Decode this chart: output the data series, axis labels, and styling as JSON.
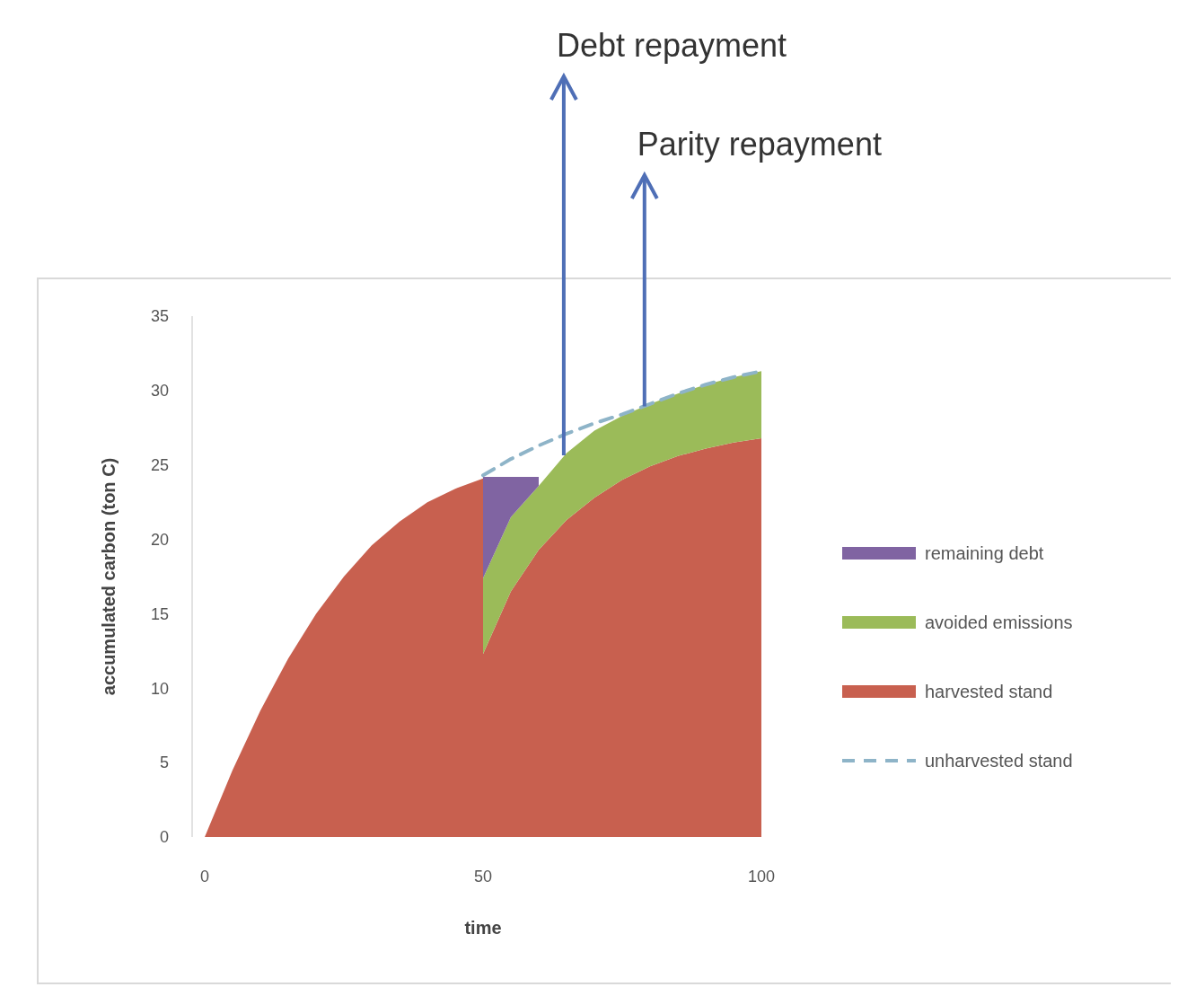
{
  "chart_data": {
    "type": "area",
    "stacked": true,
    "xlabel": "time",
    "ylabel": "accumulated carbon (ton C)",
    "x": [
      0,
      5,
      10,
      15,
      20,
      25,
      30,
      35,
      40,
      45,
      50,
      50,
      55,
      60,
      65,
      70,
      75,
      80,
      85,
      90,
      95,
      100
    ],
    "xlim": [
      0,
      100
    ],
    "xticks": [
      0,
      50,
      100
    ],
    "ylim": [
      0,
      35
    ],
    "yticks": [
      0,
      5,
      10,
      15,
      20,
      25,
      30,
      35
    ],
    "series": [
      {
        "name": "harvested stand",
        "color": "#c8604f",
        "values": [
          0,
          4.5,
          8.5,
          12,
          15,
          17.5,
          19.6,
          21.2,
          22.5,
          23.4,
          24.1,
          12.3,
          16.5,
          19.3,
          21.3,
          22.8,
          24,
          24.9,
          25.6,
          26.1,
          26.5,
          26.8
        ]
      },
      {
        "name": "avoided emissions",
        "color": "#9bbb59",
        "values": [
          null,
          null,
          null,
          null,
          null,
          null,
          null,
          null,
          null,
          null,
          null,
          5.1,
          5,
          4.3,
          4.5,
          4.5,
          4.3,
          4.2,
          4.2,
          4.3,
          4.4,
          4.5
        ]
      },
      {
        "name": "remaining debt",
        "color": "#8064a2",
        "values": [
          null,
          null,
          null,
          null,
          null,
          null,
          null,
          null,
          null,
          null,
          null,
          6.8,
          2.7,
          0.6,
          null,
          null,
          null,
          null,
          null,
          null,
          null,
          null
        ]
      },
      {
        "name": "unharvested stand",
        "type": "line",
        "line_style": "dashed",
        "color": "#8eb4c8",
        "x": [
          50,
          55,
          60,
          65,
          70,
          75,
          80,
          85,
          90,
          95,
          100
        ],
        "values": [
          24.3,
          25.4,
          26.3,
          27.1,
          27.8,
          28.4,
          29.1,
          29.8,
          30.4,
          30.9,
          31.3
        ]
      }
    ],
    "legend": "right",
    "grid": false,
    "ref_lines": [
      {
        "axis": "x",
        "value": 64.5,
        "label": "Debt repayment",
        "color": "#4f6fb6"
      },
      {
        "axis": "x",
        "value": 79,
        "label": "Parity repayment",
        "color": "#4f6fb6"
      }
    ]
  }
}
